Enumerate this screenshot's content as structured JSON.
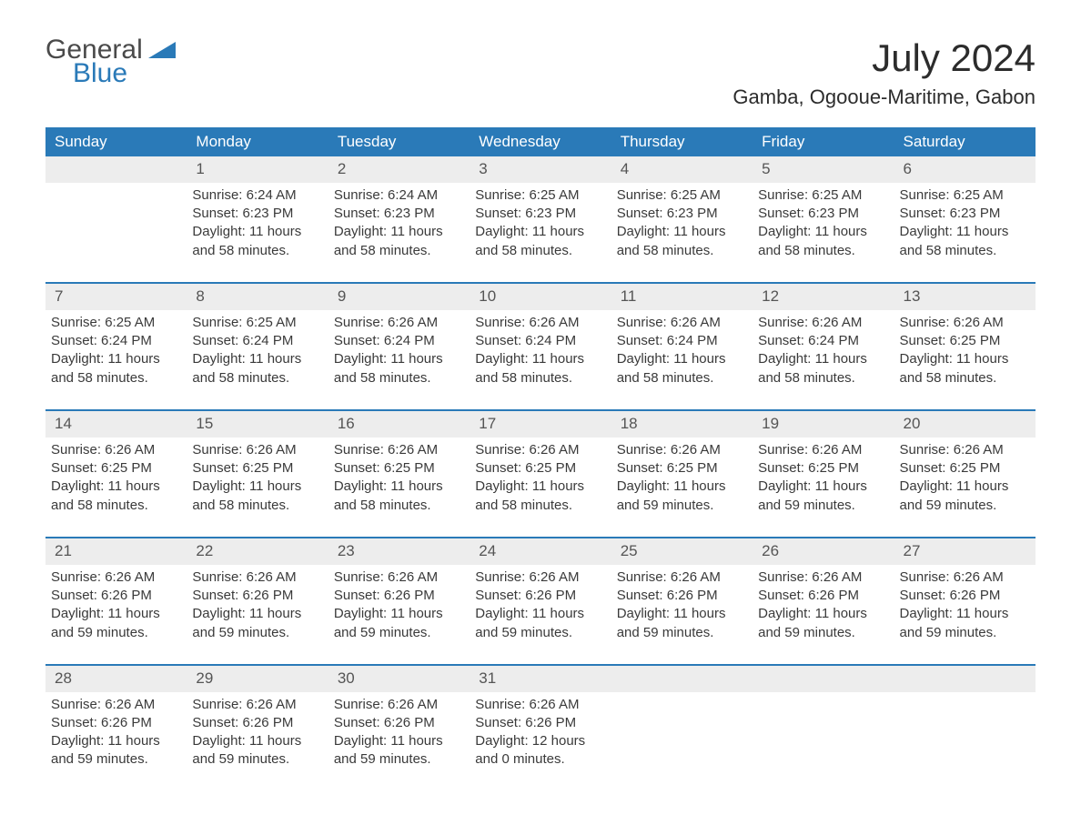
{
  "brand": {
    "general": "General",
    "blue": "Blue"
  },
  "title": "July 2024",
  "location": "Gamba, Ogooue-Maritime, Gabon",
  "colors": {
    "header_bg": "#2a7ab8",
    "header_fg": "#ffffff",
    "daynum_bg": "#ededed",
    "text": "#3a3a3a",
    "page_bg": "#ffffff"
  },
  "day_names": [
    "Sunday",
    "Monday",
    "Tuesday",
    "Wednesday",
    "Thursday",
    "Friday",
    "Saturday"
  ],
  "weeks": [
    [
      null,
      {
        "n": "1",
        "sr": "6:24 AM",
        "ss": "6:23 PM",
        "dl": "11 hours and 58 minutes."
      },
      {
        "n": "2",
        "sr": "6:24 AM",
        "ss": "6:23 PM",
        "dl": "11 hours and 58 minutes."
      },
      {
        "n": "3",
        "sr": "6:25 AM",
        "ss": "6:23 PM",
        "dl": "11 hours and 58 minutes."
      },
      {
        "n": "4",
        "sr": "6:25 AM",
        "ss": "6:23 PM",
        "dl": "11 hours and 58 minutes."
      },
      {
        "n": "5",
        "sr": "6:25 AM",
        "ss": "6:23 PM",
        "dl": "11 hours and 58 minutes."
      },
      {
        "n": "6",
        "sr": "6:25 AM",
        "ss": "6:23 PM",
        "dl": "11 hours and 58 minutes."
      }
    ],
    [
      {
        "n": "7",
        "sr": "6:25 AM",
        "ss": "6:24 PM",
        "dl": "11 hours and 58 minutes."
      },
      {
        "n": "8",
        "sr": "6:25 AM",
        "ss": "6:24 PM",
        "dl": "11 hours and 58 minutes."
      },
      {
        "n": "9",
        "sr": "6:26 AM",
        "ss": "6:24 PM",
        "dl": "11 hours and 58 minutes."
      },
      {
        "n": "10",
        "sr": "6:26 AM",
        "ss": "6:24 PM",
        "dl": "11 hours and 58 minutes."
      },
      {
        "n": "11",
        "sr": "6:26 AM",
        "ss": "6:24 PM",
        "dl": "11 hours and 58 minutes."
      },
      {
        "n": "12",
        "sr": "6:26 AM",
        "ss": "6:24 PM",
        "dl": "11 hours and 58 minutes."
      },
      {
        "n": "13",
        "sr": "6:26 AM",
        "ss": "6:25 PM",
        "dl": "11 hours and 58 minutes."
      }
    ],
    [
      {
        "n": "14",
        "sr": "6:26 AM",
        "ss": "6:25 PM",
        "dl": "11 hours and 58 minutes."
      },
      {
        "n": "15",
        "sr": "6:26 AM",
        "ss": "6:25 PM",
        "dl": "11 hours and 58 minutes."
      },
      {
        "n": "16",
        "sr": "6:26 AM",
        "ss": "6:25 PM",
        "dl": "11 hours and 58 minutes."
      },
      {
        "n": "17",
        "sr": "6:26 AM",
        "ss": "6:25 PM",
        "dl": "11 hours and 58 minutes."
      },
      {
        "n": "18",
        "sr": "6:26 AM",
        "ss": "6:25 PM",
        "dl": "11 hours and 59 minutes."
      },
      {
        "n": "19",
        "sr": "6:26 AM",
        "ss": "6:25 PM",
        "dl": "11 hours and 59 minutes."
      },
      {
        "n": "20",
        "sr": "6:26 AM",
        "ss": "6:25 PM",
        "dl": "11 hours and 59 minutes."
      }
    ],
    [
      {
        "n": "21",
        "sr": "6:26 AM",
        "ss": "6:26 PM",
        "dl": "11 hours and 59 minutes."
      },
      {
        "n": "22",
        "sr": "6:26 AM",
        "ss": "6:26 PM",
        "dl": "11 hours and 59 minutes."
      },
      {
        "n": "23",
        "sr": "6:26 AM",
        "ss": "6:26 PM",
        "dl": "11 hours and 59 minutes."
      },
      {
        "n": "24",
        "sr": "6:26 AM",
        "ss": "6:26 PM",
        "dl": "11 hours and 59 minutes."
      },
      {
        "n": "25",
        "sr": "6:26 AM",
        "ss": "6:26 PM",
        "dl": "11 hours and 59 minutes."
      },
      {
        "n": "26",
        "sr": "6:26 AM",
        "ss": "6:26 PM",
        "dl": "11 hours and 59 minutes."
      },
      {
        "n": "27",
        "sr": "6:26 AM",
        "ss": "6:26 PM",
        "dl": "11 hours and 59 minutes."
      }
    ],
    [
      {
        "n": "28",
        "sr": "6:26 AM",
        "ss": "6:26 PM",
        "dl": "11 hours and 59 minutes."
      },
      {
        "n": "29",
        "sr": "6:26 AM",
        "ss": "6:26 PM",
        "dl": "11 hours and 59 minutes."
      },
      {
        "n": "30",
        "sr": "6:26 AM",
        "ss": "6:26 PM",
        "dl": "11 hours and 59 minutes."
      },
      {
        "n": "31",
        "sr": "6:26 AM",
        "ss": "6:26 PM",
        "dl": "12 hours and 0 minutes."
      },
      null,
      null,
      null
    ]
  ],
  "labels": {
    "sunrise": "Sunrise:",
    "sunset": "Sunset:",
    "daylight": "Daylight:"
  }
}
